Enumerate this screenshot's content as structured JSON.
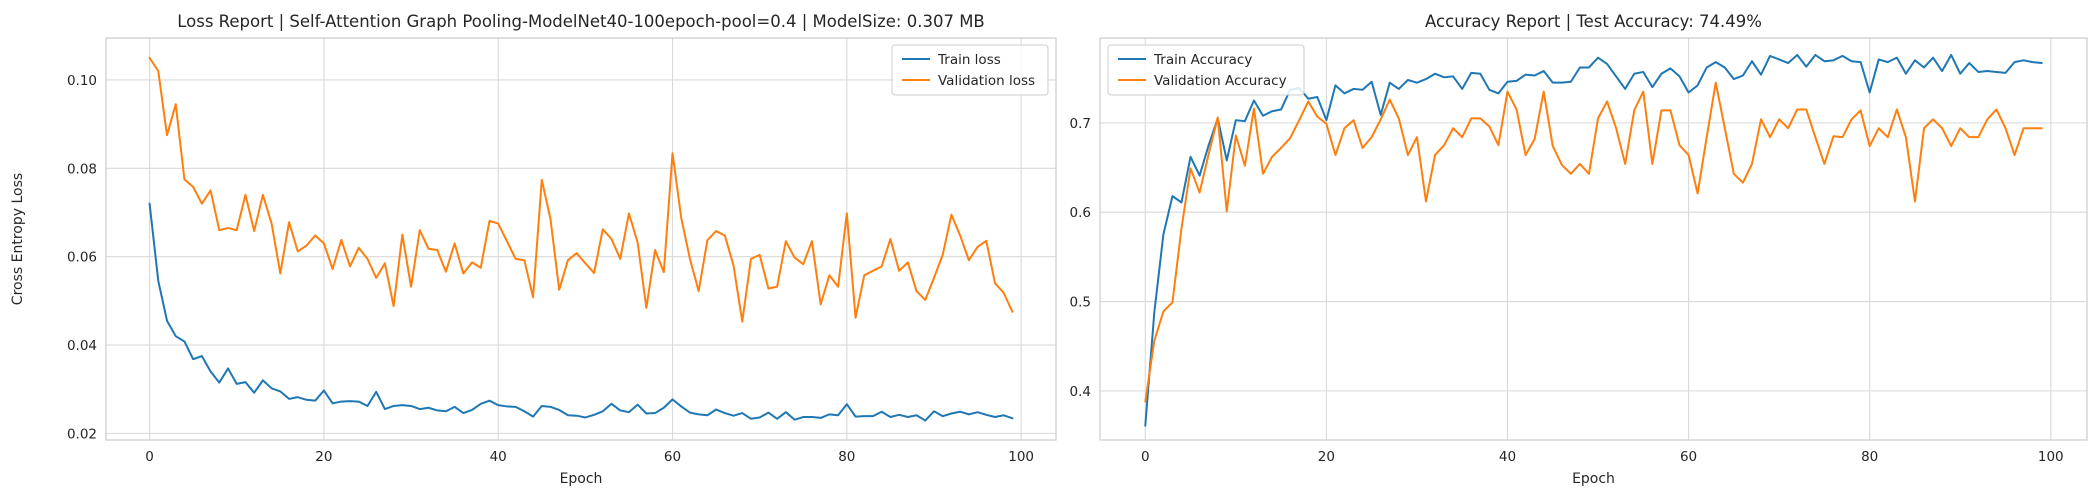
{
  "colors": {
    "train": "#1f77b4",
    "validation": "#ff7f0e"
  },
  "chart_data": [
    {
      "type": "line",
      "title": "Loss Report | Self-Attention Graph Pooling-ModelNet40-100epoch-pool=0.4 | ModelSize: 0.307 MB",
      "xlabel": "Epoch",
      "ylabel": "Cross Entropy Loss",
      "xlim": [
        -5,
        104
      ],
      "ylim": [
        0.0185,
        0.1095
      ],
      "xticks": [
        0,
        20,
        40,
        60,
        80,
        100
      ],
      "yticks": [
        0.02,
        0.04,
        0.06,
        0.08,
        0.1
      ],
      "ytick_labels": [
        "0.02",
        "0.04",
        "0.06",
        "0.08",
        "0.10"
      ],
      "grid": true,
      "legend_position": "top-right",
      "series": [
        {
          "name": "Train loss",
          "color_key": "train",
          "values": [
            0.072,
            0.0545,
            0.0455,
            0.042,
            0.0408,
            0.0368,
            0.0375,
            0.034,
            0.0315,
            0.0347,
            0.0312,
            0.0316,
            0.0292,
            0.032,
            0.0302,
            0.0295,
            0.0278,
            0.0282,
            0.0276,
            0.0274,
            0.0297,
            0.0268,
            0.0272,
            0.0273,
            0.0272,
            0.0262,
            0.0294,
            0.0255,
            0.0262,
            0.0264,
            0.0262,
            0.0255,
            0.0258,
            0.0252,
            0.025,
            0.026,
            0.0246,
            0.0253,
            0.0267,
            0.0274,
            0.0264,
            0.0261,
            0.026,
            0.025,
            0.0238,
            0.0262,
            0.026,
            0.0253,
            0.0241,
            0.024,
            0.0236,
            0.0242,
            0.025,
            0.0267,
            0.0252,
            0.0248,
            0.0265,
            0.0245,
            0.0246,
            0.0258,
            0.0277,
            0.0261,
            0.0247,
            0.0243,
            0.0241,
            0.0254,
            0.0246,
            0.024,
            0.0246,
            0.0233,
            0.0236,
            0.0247,
            0.0233,
            0.0248,
            0.0231,
            0.0237,
            0.0237,
            0.0235,
            0.0243,
            0.0241,
            0.0266,
            0.0238,
            0.0239,
            0.0239,
            0.0249,
            0.0237,
            0.0242,
            0.0237,
            0.0241,
            0.0229,
            0.025,
            0.0239,
            0.0245,
            0.0249,
            0.0243,
            0.0248,
            0.0242,
            0.0237,
            0.0241,
            0.0234
          ]
        },
        {
          "name": "Validation loss",
          "color_key": "validation",
          "values": [
            0.105,
            0.102,
            0.0875,
            0.0945,
            0.0775,
            0.0758,
            0.072,
            0.075,
            0.066,
            0.0665,
            0.066,
            0.074,
            0.0658,
            0.074,
            0.0675,
            0.0562,
            0.0678,
            0.0612,
            0.0625,
            0.0648,
            0.063,
            0.0572,
            0.0638,
            0.0578,
            0.062,
            0.0595,
            0.0552,
            0.0585,
            0.0488,
            0.065,
            0.0532,
            0.066,
            0.0618,
            0.0615,
            0.0566,
            0.063,
            0.0562,
            0.0587,
            0.0575,
            0.0681,
            0.0675,
            0.0635,
            0.0595,
            0.0592,
            0.0508,
            0.0774,
            0.0685,
            0.0525,
            0.0592,
            0.0608,
            0.0585,
            0.0563,
            0.0662,
            0.064,
            0.0595,
            0.0698,
            0.0632,
            0.0484,
            0.0615,
            0.0565,
            0.0834,
            0.0688,
            0.0595,
            0.0522,
            0.0637,
            0.0658,
            0.0648,
            0.058,
            0.0453,
            0.0595,
            0.0604,
            0.0528,
            0.0532,
            0.0635,
            0.0598,
            0.0583,
            0.0635,
            0.0492,
            0.0558,
            0.0532,
            0.0698,
            0.0462,
            0.0558,
            0.0568,
            0.0578,
            0.064,
            0.0568,
            0.0587,
            0.0522,
            0.0502,
            0.0552,
            0.0604,
            0.0695,
            0.0648,
            0.0592,
            0.0622,
            0.0636,
            0.054,
            0.0518,
            0.0475
          ]
        }
      ]
    },
    {
      "type": "line",
      "title": "Accuracy Report | Test Accuracy: 74.49%",
      "xlabel": "Epoch",
      "ylabel": "",
      "xlim": [
        -5,
        104
      ],
      "ylim": [
        0.345,
        0.795
      ],
      "xticks": [
        0,
        20,
        40,
        60,
        80,
        100
      ],
      "yticks": [
        0.4,
        0.5,
        0.6,
        0.7
      ],
      "ytick_labels": [
        "0.4",
        "0.5",
        "0.6",
        "0.7"
      ],
      "grid": true,
      "legend_position": "top-left",
      "series": [
        {
          "name": "Train Accuracy",
          "color_key": "train",
          "values": [
            0.361,
            0.488,
            0.575,
            0.618,
            0.611,
            0.662,
            0.641,
            0.675,
            0.705,
            0.658,
            0.703,
            0.702,
            0.725,
            0.708,
            0.713,
            0.715,
            0.737,
            0.739,
            0.727,
            0.729,
            0.703,
            0.742,
            0.733,
            0.738,
            0.737,
            0.746,
            0.709,
            0.745,
            0.738,
            0.748,
            0.745,
            0.749,
            0.755,
            0.751,
            0.752,
            0.738,
            0.756,
            0.755,
            0.737,
            0.733,
            0.746,
            0.747,
            0.754,
            0.753,
            0.758,
            0.745,
            0.745,
            0.746,
            0.762,
            0.762,
            0.773,
            0.766,
            0.752,
            0.738,
            0.755,
            0.757,
            0.74,
            0.755,
            0.761,
            0.752,
            0.734,
            0.742,
            0.762,
            0.768,
            0.762,
            0.749,
            0.753,
            0.769,
            0.754,
            0.775,
            0.771,
            0.767,
            0.776,
            0.763,
            0.776,
            0.769,
            0.77,
            0.775,
            0.769,
            0.768,
            0.734,
            0.771,
            0.768,
            0.773,
            0.755,
            0.77,
            0.762,
            0.773,
            0.758,
            0.776,
            0.755,
            0.767,
            0.757,
            0.758,
            0.757,
            0.756,
            0.768,
            0.77,
            0.768,
            0.767
          ]
        },
        {
          "name": "Validation Accuracy",
          "color_key": "validation",
          "values": [
            0.388,
            0.456,
            0.489,
            0.499,
            0.582,
            0.649,
            0.622,
            0.665,
            0.706,
            0.601,
            0.686,
            0.652,
            0.716,
            0.643,
            0.662,
            0.672,
            0.683,
            0.703,
            0.724,
            0.707,
            0.699,
            0.664,
            0.694,
            0.703,
            0.672,
            0.684,
            0.704,
            0.726,
            0.705,
            0.664,
            0.684,
            0.612,
            0.664,
            0.675,
            0.694,
            0.684,
            0.705,
            0.705,
            0.696,
            0.675,
            0.735,
            0.715,
            0.664,
            0.682,
            0.735,
            0.674,
            0.653,
            0.643,
            0.654,
            0.643,
            0.705,
            0.724,
            0.694,
            0.654,
            0.714,
            0.735,
            0.654,
            0.714,
            0.714,
            0.675,
            0.664,
            0.621,
            0.684,
            0.745,
            0.694,
            0.643,
            0.633,
            0.654,
            0.704,
            0.684,
            0.704,
            0.694,
            0.715,
            0.715,
            0.684,
            0.654,
            0.685,
            0.684,
            0.704,
            0.714,
            0.674,
            0.694,
            0.684,
            0.715,
            0.684,
            0.612,
            0.694,
            0.704,
            0.694,
            0.674,
            0.694,
            0.684,
            0.684,
            0.704,
            0.715,
            0.694,
            0.664,
            0.694,
            0.694,
            0.694
          ]
        }
      ]
    }
  ]
}
